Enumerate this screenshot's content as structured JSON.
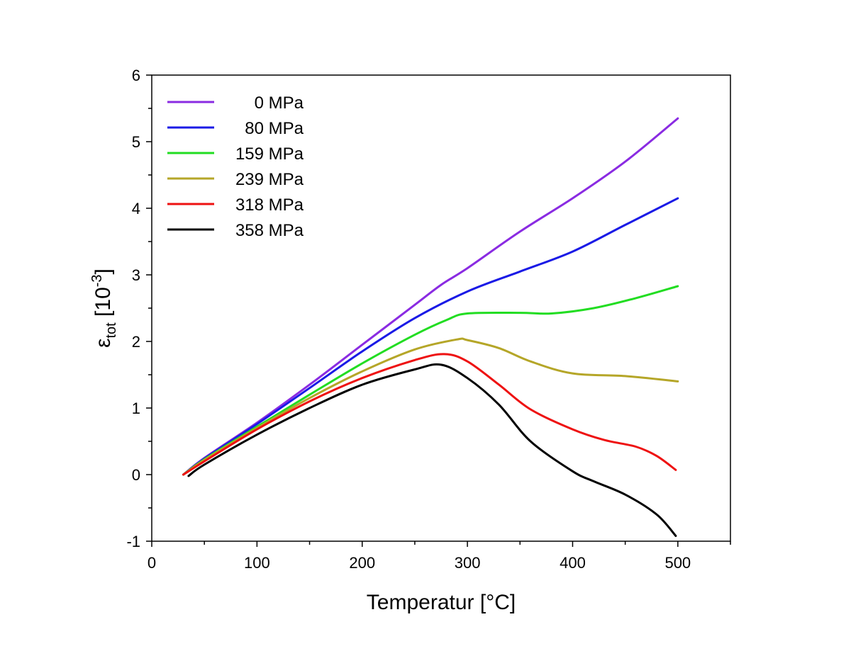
{
  "chart_data": {
    "type": "line",
    "xlabel": "Temperatur [°C]",
    "ylabel": {
      "main": "ε",
      "sub": "tot",
      "unit_open": " [10",
      "unit_exp": "-3",
      "unit_close": "]"
    },
    "xlim": [
      0,
      550
    ],
    "ylim": [
      -1,
      6
    ],
    "x_ticks": [
      0,
      100,
      200,
      300,
      400,
      500
    ],
    "y_ticks": [
      -1,
      0,
      1,
      2,
      3,
      4,
      5,
      6
    ],
    "x_tick_labels": [
      "0",
      "100",
      "200",
      "300",
      "400",
      "500"
    ],
    "y_tick_labels": [
      "-1",
      "0",
      "1",
      "2",
      "3",
      "4",
      "5",
      "6"
    ],
    "grid": false,
    "legend_position": "top-left",
    "series": [
      {
        "name": "0 MPa",
        "color": "#8a2be2",
        "x": [
          30,
          50,
          100,
          150,
          200,
          250,
          275,
          300,
          350,
          400,
          450,
          500
        ],
        "y": [
          0,
          0.25,
          0.78,
          1.35,
          1.95,
          2.55,
          2.85,
          3.1,
          3.65,
          4.15,
          4.7,
          5.35
        ]
      },
      {
        "name": "80 MPa",
        "color": "#1a1ae6",
        "x": [
          30,
          50,
          100,
          150,
          200,
          250,
          300,
          350,
          400,
          450,
          500
        ],
        "y": [
          0,
          0.24,
          0.76,
          1.3,
          1.85,
          2.35,
          2.75,
          3.05,
          3.35,
          3.75,
          4.15
        ]
      },
      {
        "name": "159 MPa",
        "color": "#22dd22",
        "x": [
          30,
          50,
          100,
          150,
          200,
          250,
          280,
          300,
          350,
          380,
          420,
          460,
          500
        ],
        "y": [
          0,
          0.23,
          0.72,
          1.2,
          1.67,
          2.1,
          2.32,
          2.42,
          2.43,
          2.42,
          2.5,
          2.65,
          2.83
        ]
      },
      {
        "name": "239 MPa",
        "color": "#b5a628",
        "x": [
          30,
          50,
          100,
          150,
          200,
          250,
          290,
          300,
          330,
          360,
          400,
          450,
          500
        ],
        "y": [
          0,
          0.22,
          0.7,
          1.15,
          1.55,
          1.88,
          2.03,
          2.02,
          1.9,
          1.7,
          1.52,
          1.48,
          1.4
        ]
      },
      {
        "name": "318 MPa",
        "color": "#ee1111",
        "x": [
          30,
          50,
          100,
          150,
          200,
          250,
          278,
          300,
          330,
          360,
          400,
          430,
          460,
          480,
          498
        ],
        "y": [
          0,
          0.2,
          0.68,
          1.1,
          1.45,
          1.72,
          1.81,
          1.7,
          1.35,
          0.98,
          0.68,
          0.52,
          0.42,
          0.28,
          0.07
        ]
      },
      {
        "name": "358 MPa",
        "color": "#000000",
        "x": [
          35,
          50,
          100,
          150,
          200,
          250,
          275,
          300,
          330,
          360,
          400,
          420,
          450,
          480,
          498
        ],
        "y": [
          -0.02,
          0.15,
          0.6,
          1.0,
          1.35,
          1.58,
          1.65,
          1.45,
          1.05,
          0.5,
          0.05,
          -0.1,
          -0.3,
          -0.6,
          -0.92
        ]
      }
    ]
  }
}
